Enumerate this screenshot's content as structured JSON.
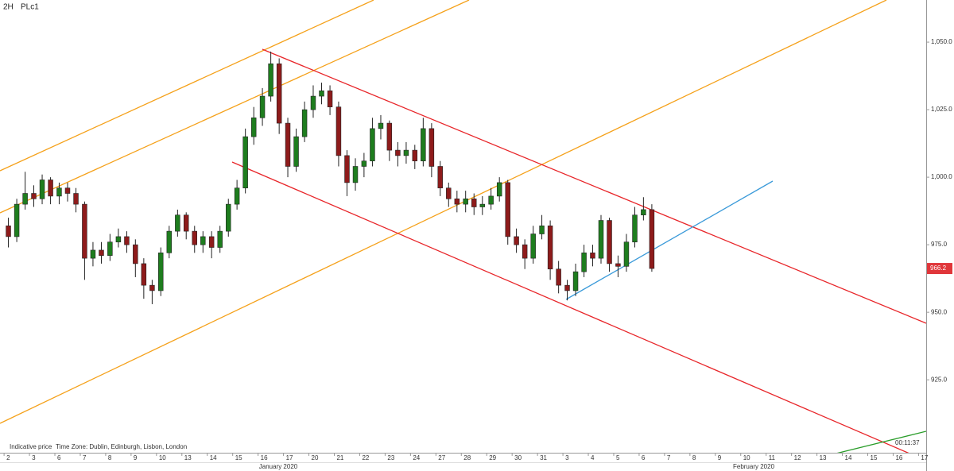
{
  "chart_data": {
    "type": "candlestick",
    "title": "PLc1",
    "interval": "2H",
    "footer_note": "Indicative price",
    "time_zone": "Time Zone: Dublin, Edinburgh, Lisbon, London",
    "countdown": "00:11:37",
    "months": [
      "January 2020",
      "February 2020"
    ],
    "up_color": "#1e7d1e",
    "down_color": "#8e1b1b",
    "last_price": 966.2,
    "last_price_color": "#e0363a",
    "x": [
      0.17,
      0.5,
      0.83,
      1.17,
      1.5,
      1.83,
      2.17,
      2.5,
      2.83,
      3.17,
      3.5,
      3.83,
      4.17,
      4.5,
      4.83,
      5.17,
      5.5,
      5.83,
      6.17,
      6.5,
      6.83,
      7.17,
      7.5,
      7.83,
      8.17,
      8.5,
      8.83,
      9.17,
      9.5,
      9.83,
      10.17,
      10.5,
      10.83,
      11.17,
      11.5,
      11.83,
      12.17,
      12.5,
      12.83,
      13.17,
      13.5,
      13.83,
      14.17,
      14.5,
      14.83,
      15.17,
      15.5,
      15.83,
      16.17,
      16.5,
      16.83,
      17.17,
      17.5,
      17.83,
      18.17,
      18.5,
      18.83,
      19.17,
      19.5,
      19.83,
      20.17,
      20.5,
      20.83,
      21.17,
      21.5,
      21.83,
      22.17,
      22.5,
      22.83,
      23.17,
      23.5,
      23.83,
      24.17,
      24.5,
      24.83,
      25.17,
      25.5
    ],
    "open": [
      982,
      978,
      990,
      994,
      992,
      999,
      993,
      996,
      994,
      990,
      970,
      973,
      971,
      976,
      978,
      975,
      968,
      960,
      958,
      972,
      980,
      986,
      980,
      975,
      978,
      974,
      980,
      990,
      996,
      1015,
      1022,
      1030,
      1042,
      1020,
      1004,
      1015,
      1025,
      1030,
      1032,
      1026,
      1008,
      998,
      1004,
      1006,
      1018,
      1020,
      1010,
      1008,
      1010,
      1006,
      1018,
      1004,
      996,
      992,
      990,
      992,
      989,
      990,
      993,
      998,
      978,
      975,
      970,
      979,
      982,
      966,
      960,
      958,
      965,
      972,
      970,
      984,
      968,
      967,
      976,
      986,
      988
    ],
    "high": [
      985,
      992,
      1002,
      997,
      1001,
      1000,
      998,
      998,
      996,
      991,
      976,
      976,
      979,
      981,
      980,
      977,
      970,
      962,
      974,
      982,
      988,
      987,
      982,
      980,
      980,
      982,
      992,
      999,
      1018,
      1026,
      1033,
      1046.5,
      1044,
      1022,
      1018,
      1028,
      1034,
      1035,
      1034,
      1028,
      1010,
      1007,
      1009,
      1022,
      1023,
      1021,
      1013,
      1013,
      1012,
      1022,
      1020,
      1006,
      998,
      995,
      995,
      994,
      993,
      996,
      1000,
      999,
      981,
      977,
      982,
      986,
      984,
      969,
      962,
      968,
      975,
      975,
      986,
      985,
      971,
      979,
      989,
      992.6,
      990
    ],
    "low": [
      974,
      976,
      988,
      989,
      990,
      990,
      990,
      991,
      987,
      962,
      967,
      968,
      969,
      974,
      972,
      963,
      955,
      953,
      956,
      970,
      978,
      977,
      972,
      972,
      970,
      972,
      978,
      988,
      994,
      1012,
      1019,
      1028,
      1016,
      1000,
      1002,
      1013,
      1022,
      1027,
      1023,
      1004,
      993,
      995,
      1000,
      1004,
      1014,
      1006,
      1004,
      1005,
      1003,
      1004,
      1000,
      993,
      989,
      987,
      987,
      986,
      986,
      988,
      991,
      975,
      972,
      966,
      968,
      977,
      962,
      957,
      954.4,
      956,
      963,
      967,
      968,
      965,
      963,
      965,
      974,
      984,
      965
    ],
    "close": [
      978,
      990,
      994,
      992,
      999,
      993,
      996,
      994,
      990,
      970,
      973,
      971,
      976,
      978,
      975,
      968,
      960,
      958,
      972,
      980,
      986,
      980,
      975,
      978,
      974,
      980,
      990,
      996,
      1015,
      1022,
      1030,
      1042,
      1020,
      1004,
      1015,
      1025,
      1030,
      1032,
      1026,
      1008,
      998,
      1004,
      1006,
      1018,
      1020,
      1010,
      1008,
      1010,
      1006,
      1018,
      1004,
      996,
      992,
      990,
      992,
      989,
      990,
      993,
      998,
      978,
      975,
      970,
      979,
      982,
      966,
      960,
      958,
      965,
      972,
      970,
      984,
      968,
      967,
      976,
      986,
      988,
      966.2
    ],
    "xlim": [
      -0.16,
      36.3
    ],
    "xticks": [
      {
        "value": 0,
        "label": "2"
      },
      {
        "value": 1,
        "label": "3"
      },
      {
        "value": 2,
        "label": "6"
      },
      {
        "value": 3,
        "label": "7"
      },
      {
        "value": 4,
        "label": "8"
      },
      {
        "value": 5,
        "label": "9"
      },
      {
        "value": 6,
        "label": "10"
      },
      {
        "value": 7,
        "label": "13"
      },
      {
        "value": 8,
        "label": "14"
      },
      {
        "value": 9,
        "label": "15"
      },
      {
        "value": 10,
        "label": "16"
      },
      {
        "value": 11,
        "label": "17"
      },
      {
        "value": 12,
        "label": "20"
      },
      {
        "value": 13,
        "label": "21"
      },
      {
        "value": 14,
        "label": "22"
      },
      {
        "value": 15,
        "label": "23"
      },
      {
        "value": 16,
        "label": "24"
      },
      {
        "value": 17,
        "label": "27"
      },
      {
        "value": 18,
        "label": "28"
      },
      {
        "value": 19,
        "label": "29"
      },
      {
        "value": 20,
        "label": "30"
      },
      {
        "value": 21,
        "label": "31"
      },
      {
        "value": 22,
        "label": "3"
      },
      {
        "value": 23,
        "label": "4"
      },
      {
        "value": 24,
        "label": "5"
      },
      {
        "value": 25,
        "label": "6"
      },
      {
        "value": 26,
        "label": "7"
      },
      {
        "value": 27,
        "label": "8"
      },
      {
        "value": 28,
        "label": "9"
      },
      {
        "value": 29,
        "label": "10"
      },
      {
        "value": 30,
        "label": "11"
      },
      {
        "value": 31,
        "label": "12"
      },
      {
        "value": 32,
        "label": "13"
      },
      {
        "value": 33,
        "label": "14"
      },
      {
        "value": 34,
        "label": "15"
      },
      {
        "value": 35,
        "label": "16"
      },
      {
        "value": 36,
        "label": "17"
      }
    ],
    "ylim": [
      898,
      1065.6
    ],
    "yticks": [
      {
        "value": 1050,
        "label": "1,050.0"
      },
      {
        "value": 1025,
        "label": "1,025.0"
      },
      {
        "value": 1000,
        "label": "1,000.0"
      },
      {
        "value": 975,
        "label": "975.0"
      },
      {
        "value": 950,
        "label": "950.0"
      },
      {
        "value": 925,
        "label": "925.0"
      }
    ]
  }
}
